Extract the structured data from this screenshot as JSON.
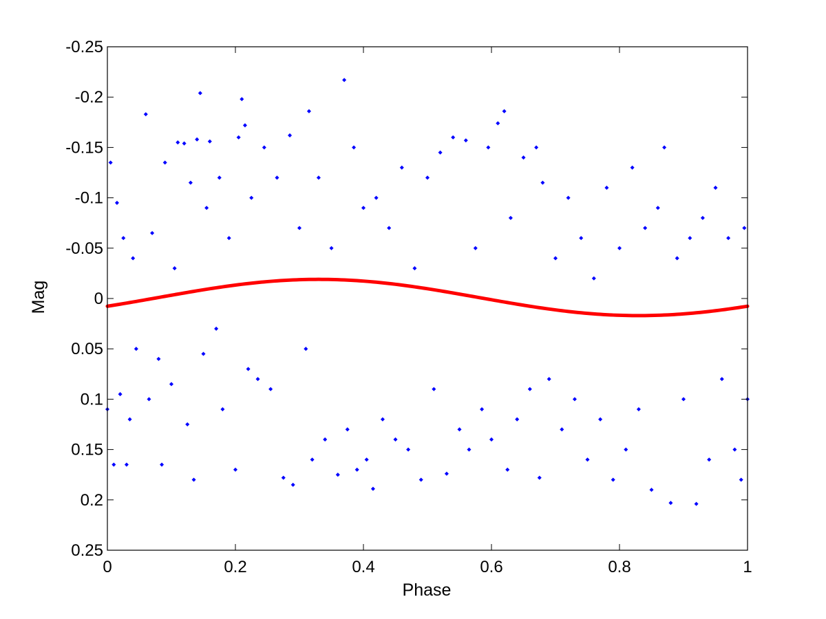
{
  "chart_data": {
    "type": "scatter",
    "title": "",
    "xlabel": "Phase",
    "ylabel": "Mag",
    "xlim": [
      0,
      1
    ],
    "ylim": [
      -0.25,
      0.25
    ],
    "y_reversed": true,
    "grid": false,
    "x_ticks": [
      "0",
      "0.2",
      "0.4",
      "0.6",
      "0.8",
      "1"
    ],
    "x_tick_values": [
      0,
      0.2,
      0.4,
      0.6,
      0.8,
      1
    ],
    "y_ticks": [
      "-0.25",
      "-0.2",
      "-0.15",
      "-0.1",
      "-0.05",
      "0",
      "0.05",
      "0.1",
      "0.15",
      "0.2",
      "0.25"
    ],
    "y_tick_values": [
      -0.25,
      -0.2,
      -0.15,
      -0.1,
      -0.05,
      0,
      0.05,
      0.1,
      0.15,
      0.2,
      0.25
    ],
    "colors": {
      "points": "#0000ff",
      "fit": "#ff0000",
      "axes": "#000000"
    },
    "series": [
      {
        "kind": "scatter",
        "color": "#0000ff",
        "points": [
          [
            0.0,
            0.11
          ],
          [
            0.005,
            -0.135
          ],
          [
            0.01,
            0.165
          ],
          [
            0.015,
            -0.095
          ],
          [
            0.02,
            0.095
          ],
          [
            0.025,
            -0.06
          ],
          [
            0.03,
            0.165
          ],
          [
            0.035,
            0.12
          ],
          [
            0.04,
            -0.04
          ],
          [
            0.045,
            0.05
          ],
          [
            0.06,
            -0.183
          ],
          [
            0.065,
            0.1
          ],
          [
            0.07,
            -0.065
          ],
          [
            0.08,
            0.06
          ],
          [
            0.085,
            0.165
          ],
          [
            0.09,
            -0.135
          ],
          [
            0.1,
            0.085
          ],
          [
            0.105,
            -0.03
          ],
          [
            0.11,
            -0.155
          ],
          [
            0.12,
            -0.154
          ],
          [
            0.125,
            0.125
          ],
          [
            0.13,
            -0.115
          ],
          [
            0.135,
            0.18
          ],
          [
            0.14,
            -0.158
          ],
          [
            0.145,
            -0.204
          ],
          [
            0.15,
            0.055
          ],
          [
            0.155,
            -0.09
          ],
          [
            0.16,
            -0.156
          ],
          [
            0.17,
            0.03
          ],
          [
            0.175,
            -0.12
          ],
          [
            0.18,
            0.11
          ],
          [
            0.19,
            -0.06
          ],
          [
            0.2,
            0.17
          ],
          [
            0.205,
            -0.16
          ],
          [
            0.21,
            -0.198
          ],
          [
            0.215,
            -0.172
          ],
          [
            0.22,
            0.07
          ],
          [
            0.225,
            -0.1
          ],
          [
            0.235,
            0.08
          ],
          [
            0.245,
            -0.15
          ],
          [
            0.255,
            0.09
          ],
          [
            0.265,
            -0.12
          ],
          [
            0.275,
            0.178
          ],
          [
            0.285,
            -0.162
          ],
          [
            0.29,
            0.185
          ],
          [
            0.3,
            -0.07
          ],
          [
            0.31,
            0.05
          ],
          [
            0.315,
            -0.186
          ],
          [
            0.32,
            0.16
          ],
          [
            0.33,
            -0.12
          ],
          [
            0.34,
            0.14
          ],
          [
            0.35,
            -0.05
          ],
          [
            0.36,
            0.175
          ],
          [
            0.37,
            -0.217
          ],
          [
            0.375,
            0.13
          ],
          [
            0.385,
            -0.15
          ],
          [
            0.39,
            0.17
          ],
          [
            0.4,
            -0.09
          ],
          [
            0.405,
            0.16
          ],
          [
            0.415,
            0.189
          ],
          [
            0.42,
            -0.1
          ],
          [
            0.43,
            0.12
          ],
          [
            0.44,
            -0.07
          ],
          [
            0.45,
            0.14
          ],
          [
            0.46,
            -0.13
          ],
          [
            0.47,
            0.15
          ],
          [
            0.48,
            -0.03
          ],
          [
            0.49,
            0.18
          ],
          [
            0.5,
            -0.12
          ],
          [
            0.51,
            0.09
          ],
          [
            0.52,
            -0.145
          ],
          [
            0.53,
            0.174
          ],
          [
            0.54,
            -0.16
          ],
          [
            0.55,
            0.13
          ],
          [
            0.56,
            -0.157
          ],
          [
            0.565,
            0.15
          ],
          [
            0.575,
            -0.05
          ],
          [
            0.585,
            0.11
          ],
          [
            0.595,
            -0.15
          ],
          [
            0.6,
            0.14
          ],
          [
            0.61,
            -0.174
          ],
          [
            0.62,
            -0.186
          ],
          [
            0.625,
            0.17
          ],
          [
            0.63,
            -0.08
          ],
          [
            0.64,
            0.12
          ],
          [
            0.65,
            -0.14
          ],
          [
            0.66,
            0.09
          ],
          [
            0.67,
            -0.15
          ],
          [
            0.675,
            0.178
          ],
          [
            0.68,
            -0.115
          ],
          [
            0.69,
            0.08
          ],
          [
            0.7,
            -0.04
          ],
          [
            0.71,
            0.13
          ],
          [
            0.72,
            -0.1
          ],
          [
            0.73,
            0.1
          ],
          [
            0.74,
            -0.06
          ],
          [
            0.75,
            0.16
          ],
          [
            0.76,
            -0.02
          ],
          [
            0.77,
            0.12
          ],
          [
            0.78,
            -0.11
          ],
          [
            0.79,
            0.18
          ],
          [
            0.8,
            -0.05
          ],
          [
            0.81,
            0.15
          ],
          [
            0.82,
            -0.13
          ],
          [
            0.83,
            0.11
          ],
          [
            0.84,
            -0.07
          ],
          [
            0.85,
            0.19
          ],
          [
            0.86,
            -0.09
          ],
          [
            0.87,
            -0.15
          ],
          [
            0.88,
            0.203
          ],
          [
            0.89,
            -0.04
          ],
          [
            0.9,
            0.1
          ],
          [
            0.91,
            -0.06
          ],
          [
            0.92,
            0.204
          ],
          [
            0.93,
            -0.08
          ],
          [
            0.94,
            0.16
          ],
          [
            0.95,
            -0.11
          ],
          [
            0.96,
            0.08
          ],
          [
            0.97,
            -0.06
          ],
          [
            0.98,
            0.15
          ],
          [
            0.99,
            0.18
          ],
          [
            0.995,
            -0.07
          ],
          [
            1.0,
            0.1
          ]
        ]
      },
      {
        "kind": "line",
        "color": "#ff0000",
        "model": "sinusoid",
        "mean": -0.001,
        "amplitude": 0.018,
        "phase_of_brightest": 0.33
      }
    ]
  }
}
